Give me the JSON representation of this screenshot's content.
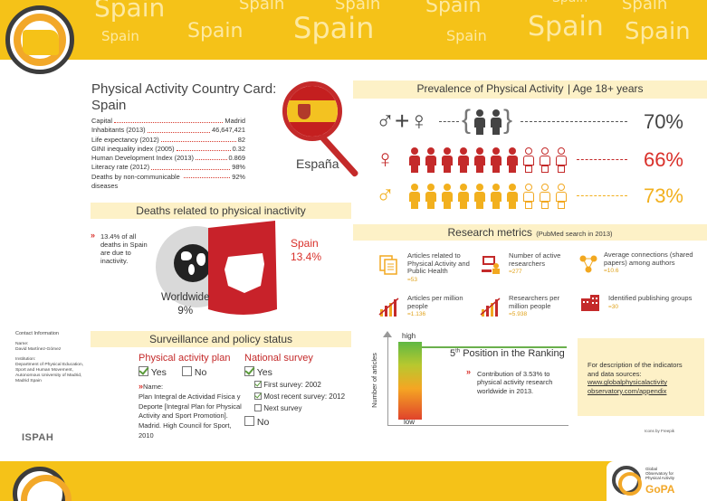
{
  "banner": {
    "watermark_text": "Spain"
  },
  "country_card": {
    "heading": "Physical Activity Country Card:",
    "country": "Spain",
    "native_name": "España",
    "stats": [
      {
        "label": "Capital",
        "value": "Madrid"
      },
      {
        "label": "Inhabitants (2013)",
        "value": "46,647,421"
      },
      {
        "label": "Life expectancy (2012)",
        "value": "82"
      },
      {
        "label": "GINI inequality index (2005)",
        "value": "0.32"
      },
      {
        "label": "Human Development Index (2013)",
        "value": "0.869"
      },
      {
        "label": "Literacy rate (2012)",
        "value": "98%"
      },
      {
        "label": "Deaths by non-communicable diseases",
        "value": "92%"
      }
    ]
  },
  "prevalence": {
    "title": "Prevalence of Physical Activity",
    "subtitle": "| Age 18+ years",
    "rows": [
      {
        "symbol": "♂+♀",
        "value": "70%",
        "group": "all"
      },
      {
        "symbol": "♀",
        "value": "66%",
        "group": "female"
      },
      {
        "symbol": "♂",
        "value": "73%",
        "group": "male"
      }
    ],
    "colors": {
      "female": "#c42a2a",
      "male": "#f2b01e",
      "text_female": "#d9302a",
      "text_male": "#f2b01e",
      "text_all": "#444444"
    }
  },
  "deaths": {
    "title": "Deaths related to physical inactivity",
    "note": "13.4% of all deaths in Spain are due to inactivity.",
    "spain_label": "Spain",
    "spain_value": "13.4%",
    "world_label": "Worldwide",
    "world_value": "9%"
  },
  "research": {
    "title": "Research metrics",
    "subtitle": "(PubMed search in 2013)",
    "metrics": [
      {
        "label": "Articles related to Physical Activity and Public Health",
        "value": "=53"
      },
      {
        "label": "Number of active researchers",
        "value": "=277"
      },
      {
        "label": "Average connections (shared papers) among authors",
        "value": "=10.6"
      },
      {
        "label": "Articles per million people",
        "value": "=1.136"
      },
      {
        "label": "Researchers per million people",
        "value": "=5.938"
      },
      {
        "label": "Identified publishing groups",
        "value": "=30"
      }
    ]
  },
  "ranking": {
    "high": "high",
    "low": "low",
    "axis_label": "Number of articles",
    "position_num": "5",
    "position_sup": "th",
    "position_text": "Position in the Ranking",
    "contribution": "Contribution of 3.53% to physical activity research worldwide in 2013."
  },
  "description": {
    "text": "For description of the indicators and data sources:",
    "link": "www.globalphysicalactivity observatory.com/appendix"
  },
  "surveillance": {
    "title": "Surveillance and policy status",
    "plan_heading": "Physical activity plan",
    "plan_yes": "Yes",
    "plan_no": "No",
    "plan_name_label": "Name:",
    "plan_name": "Plan Integral de Actividad Física y Deporte [Integral Plan for Physical Activity and Sport Promotion]. Madrid. High Council for Sport, 2010",
    "survey_heading": "National survey",
    "survey_yes": "Yes",
    "survey_no": "No",
    "first_survey": "First survey: 2002",
    "recent_survey": "Most recent survey: 2012",
    "next_survey": "Next survey"
  },
  "contact": {
    "title": "Contact Information",
    "name_label": "Name:",
    "name": "David Martínez-Gómez",
    "institution_label": "Institution:",
    "institution": "Department of Physical Education, Sport and Human Movement, Autonomous University of Madrid, Madrid Spain"
  },
  "ispah": "ISPAH",
  "icons_credit": "Icons by Freepik",
  "gopa": {
    "line1": "Global",
    "line2": "Observatory for",
    "line3": "Physical Activity",
    "brand": "GoPA"
  }
}
